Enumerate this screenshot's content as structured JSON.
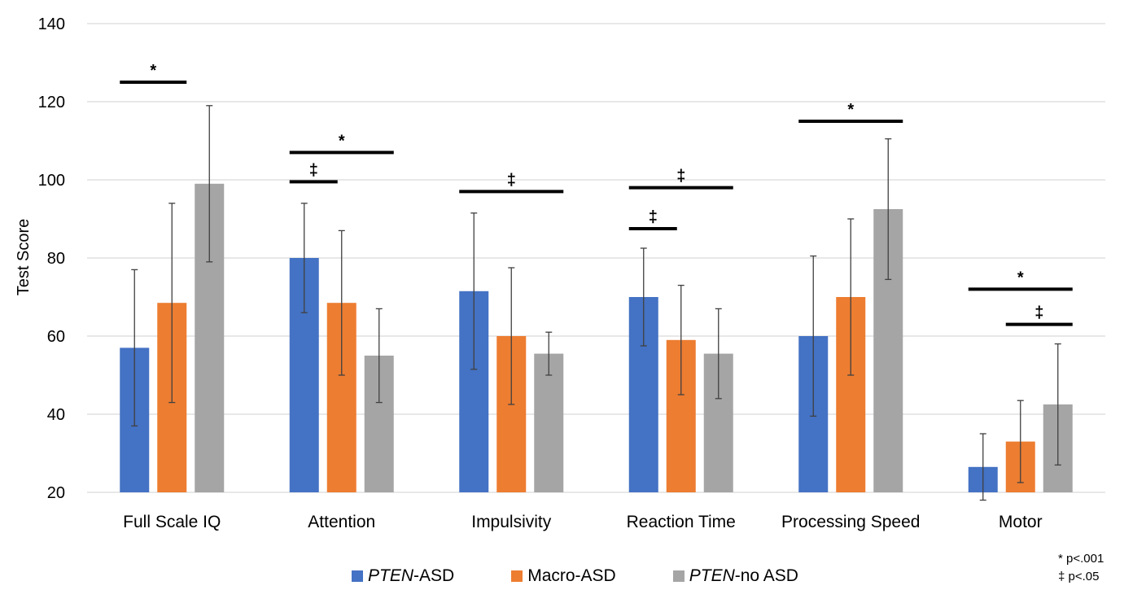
{
  "chart_data": {
    "type": "bar",
    "ylabel": "Test Score",
    "ylim": [
      20,
      140
    ],
    "yticks": [
      20,
      40,
      60,
      80,
      100,
      120,
      140
    ],
    "grid": true,
    "legend_position": "bottom",
    "categories": [
      "Full Scale IQ",
      "Attention",
      "Impulsivity",
      "Reaction Time",
      "Processing Speed",
      "Motor"
    ],
    "series": [
      {
        "name_italic": "PTEN",
        "name_rest": "-ASD",
        "color": "#4472C4",
        "values": [
          57,
          80,
          71.5,
          70,
          60,
          26.5
        ],
        "errors": [
          20,
          14,
          20,
          12.5,
          20.5,
          8.5
        ]
      },
      {
        "name_italic": "",
        "name_rest": "Macro-ASD",
        "color": "#ED7D31",
        "values": [
          68.5,
          68.5,
          60,
          59,
          70,
          33
        ],
        "errors": [
          25.5,
          18.5,
          17.5,
          14,
          20,
          10.5
        ]
      },
      {
        "name_italic": "PTEN",
        "name_rest": "-no ASD",
        "color": "#A5A5A5",
        "values": [
          99,
          55,
          55.5,
          55.5,
          92.5,
          42.5
        ],
        "errors": [
          20,
          12,
          5.5,
          11.5,
          18,
          15.5
        ]
      }
    ],
    "significance": [
      {
        "category": 0,
        "from": 0,
        "to": 1,
        "level": 125,
        "mark": "*"
      },
      {
        "category": 1,
        "from": 0,
        "to": 0.5,
        "level": 99.5,
        "mark": "‡"
      },
      {
        "category": 1,
        "from": 0,
        "to": 2,
        "level": 107,
        "mark": "*"
      },
      {
        "category": 2,
        "from": 0,
        "to": 2,
        "level": 97,
        "mark": "‡"
      },
      {
        "category": 3,
        "from": 0,
        "to": 0.5,
        "level": 87.5,
        "mark": "‡"
      },
      {
        "category": 3,
        "from": 0,
        "to": 2,
        "level": 98,
        "mark": "‡"
      },
      {
        "category": 4,
        "from": 0,
        "to": 2,
        "level": 115,
        "mark": "*"
      },
      {
        "category": 5,
        "from": 0,
        "to": 2,
        "level": 72,
        "mark": "*"
      },
      {
        "category": 5,
        "from": 1,
        "to": 2,
        "level": 63,
        "mark": "‡"
      }
    ]
  },
  "notes": {
    "line1": "* p<.001",
    "line2": "‡ p<.05"
  }
}
